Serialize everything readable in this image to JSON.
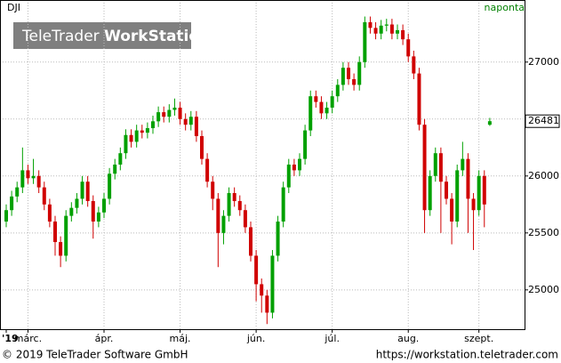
{
  "chart_data": {
    "type": "candlestick",
    "title": "DJI",
    "frequency": "naponta",
    "watermark": {
      "brand": "TeleTrader",
      "product": "WorkStation"
    },
    "footer": {
      "copyright": "© 2019 TeleTrader Software GmbH",
      "url": "https://workstation.teletrader.com"
    },
    "x": [
      "'19",
      null,
      null,
      null,
      "márc.",
      null,
      null,
      null,
      null,
      null,
      null,
      null,
      null,
      null,
      null,
      null,
      null,
      null,
      "ápr.",
      null,
      null,
      null,
      null,
      null,
      null,
      null,
      null,
      null,
      null,
      null,
      null,
      null,
      "máj.",
      null,
      null,
      null,
      null,
      null,
      null,
      null,
      null,
      null,
      null,
      null,
      null,
      null,
      "jún.",
      null,
      null,
      null,
      null,
      null,
      null,
      null,
      null,
      null,
      null,
      null,
      null,
      null,
      "júl.",
      null,
      null,
      null,
      null,
      null,
      null,
      null,
      null,
      null,
      null,
      null,
      null,
      null,
      "aug.",
      null,
      null,
      null,
      null,
      null,
      null,
      null,
      null,
      null,
      null,
      null,
      null,
      "szept.",
      null,
      null
    ],
    "open": [
      25600,
      25700,
      25820,
      25900,
      26050,
      25980,
      26000,
      25900,
      25750,
      25600,
      25420,
      25300,
      25650,
      25720,
      25800,
      25950,
      25780,
      25600,
      25680,
      25800,
      26020,
      26100,
      26200,
      26360,
      26300,
      26400,
      26380,
      26420,
      26480,
      26560,
      26520,
      26580,
      26600,
      26500,
      26450,
      26520,
      26350,
      26150,
      25950,
      25800,
      25500,
      25650,
      25850,
      25780,
      25700,
      25550,
      25300,
      25050,
      24950,
      24800,
      25300,
      25600,
      25900,
      26100,
      26050,
      26150,
      26400,
      26700,
      26650,
      26550,
      26600,
      26700,
      26800,
      26950,
      26850,
      26800,
      27000,
      27350,
      27300,
      27250,
      27320,
      27330,
      27250,
      27280,
      27200,
      27050,
      26900,
      26450,
      25700,
      26000,
      26200,
      25950,
      25800,
      25600,
      26050,
      26150,
      25800,
      25700,
      26000,
      26450
    ],
    "high": [
      25750,
      25870,
      25950,
      26250,
      26100,
      26150,
      26050,
      25950,
      25800,
      25650,
      25470,
      25700,
      25770,
      25850,
      26000,
      26000,
      25830,
      25730,
      25850,
      26070,
      26150,
      26250,
      26410,
      26410,
      26450,
      26450,
      26470,
      26530,
      26610,
      26610,
      26630,
      26680,
      26650,
      26550,
      26570,
      26570,
      26400,
      26200,
      26000,
      25850,
      25700,
      25900,
      25900,
      25830,
      25750,
      25600,
      25350,
      25100,
      25000,
      25350,
      25650,
      25950,
      26150,
      26150,
      26200,
      26450,
      26750,
      26750,
      26700,
      26650,
      26750,
      26850,
      27000,
      27000,
      26900,
      27050,
      27400,
      27400,
      27350,
      27370,
      27380,
      27380,
      27330,
      27330,
      27250,
      27100,
      26950,
      26500,
      26050,
      26250,
      26250,
      26000,
      25850,
      26100,
      26300,
      26200,
      25850,
      26050,
      26050,
      26510
    ],
    "low": [
      25550,
      25650,
      25770,
      25850,
      25930,
      25930,
      25850,
      25700,
      25550,
      25300,
      25200,
      25250,
      25600,
      25670,
      25750,
      25730,
      25450,
      25550,
      25630,
      25750,
      25970,
      26050,
      26150,
      26250,
      26250,
      26330,
      26330,
      26370,
      26430,
      26470,
      26470,
      26530,
      26450,
      26400,
      26400,
      26300,
      26100,
      25900,
      25700,
      25200,
      25400,
      25600,
      25730,
      25650,
      25500,
      25250,
      24900,
      24800,
      24700,
      24750,
      25250,
      25550,
      25850,
      26000,
      26000,
      26100,
      26350,
      26600,
      26500,
      26500,
      26550,
      26650,
      26750,
      26800,
      26750,
      26750,
      26950,
      27250,
      27200,
      27200,
      27270,
      27200,
      27200,
      27150,
      27000,
      26850,
      26400,
      25500,
      25650,
      25950,
      25500,
      25750,
      25400,
      25550,
      26000,
      25500,
      25350,
      25650,
      25550,
      26440
    ],
    "close": [
      25700,
      25820,
      25900,
      26050,
      25980,
      26000,
      25900,
      25750,
      25600,
      25420,
      25300,
      25650,
      25720,
      25800,
      25950,
      25780,
      25600,
      25680,
      25800,
      26020,
      26100,
      26200,
      26360,
      26300,
      26400,
      26380,
      26420,
      26480,
      26560,
      26520,
      26580,
      26600,
      26500,
      26450,
      26520,
      26350,
      26150,
      25950,
      25800,
      25500,
      25650,
      25850,
      25780,
      25700,
      25550,
      25300,
      25050,
      24950,
      24800,
      25300,
      25600,
      25900,
      26100,
      26050,
      26150,
      26400,
      26700,
      26650,
      26550,
      26600,
      26700,
      26800,
      26950,
      26850,
      26800,
      27000,
      27350,
      27300,
      27250,
      27320,
      27330,
      27250,
      27280,
      27200,
      27050,
      26900,
      26450,
      25700,
      26000,
      26200,
      25950,
      25800,
      25600,
      26050,
      26150,
      25800,
      25700,
      26000,
      25750,
      26481
    ],
    "up_color": "#00a000",
    "down_color": "#d00000",
    "ylim": [
      24655,
      27545
    ],
    "yticks": [
      25000,
      25500,
      26000,
      26500,
      27000
    ],
    "grid": true
  }
}
